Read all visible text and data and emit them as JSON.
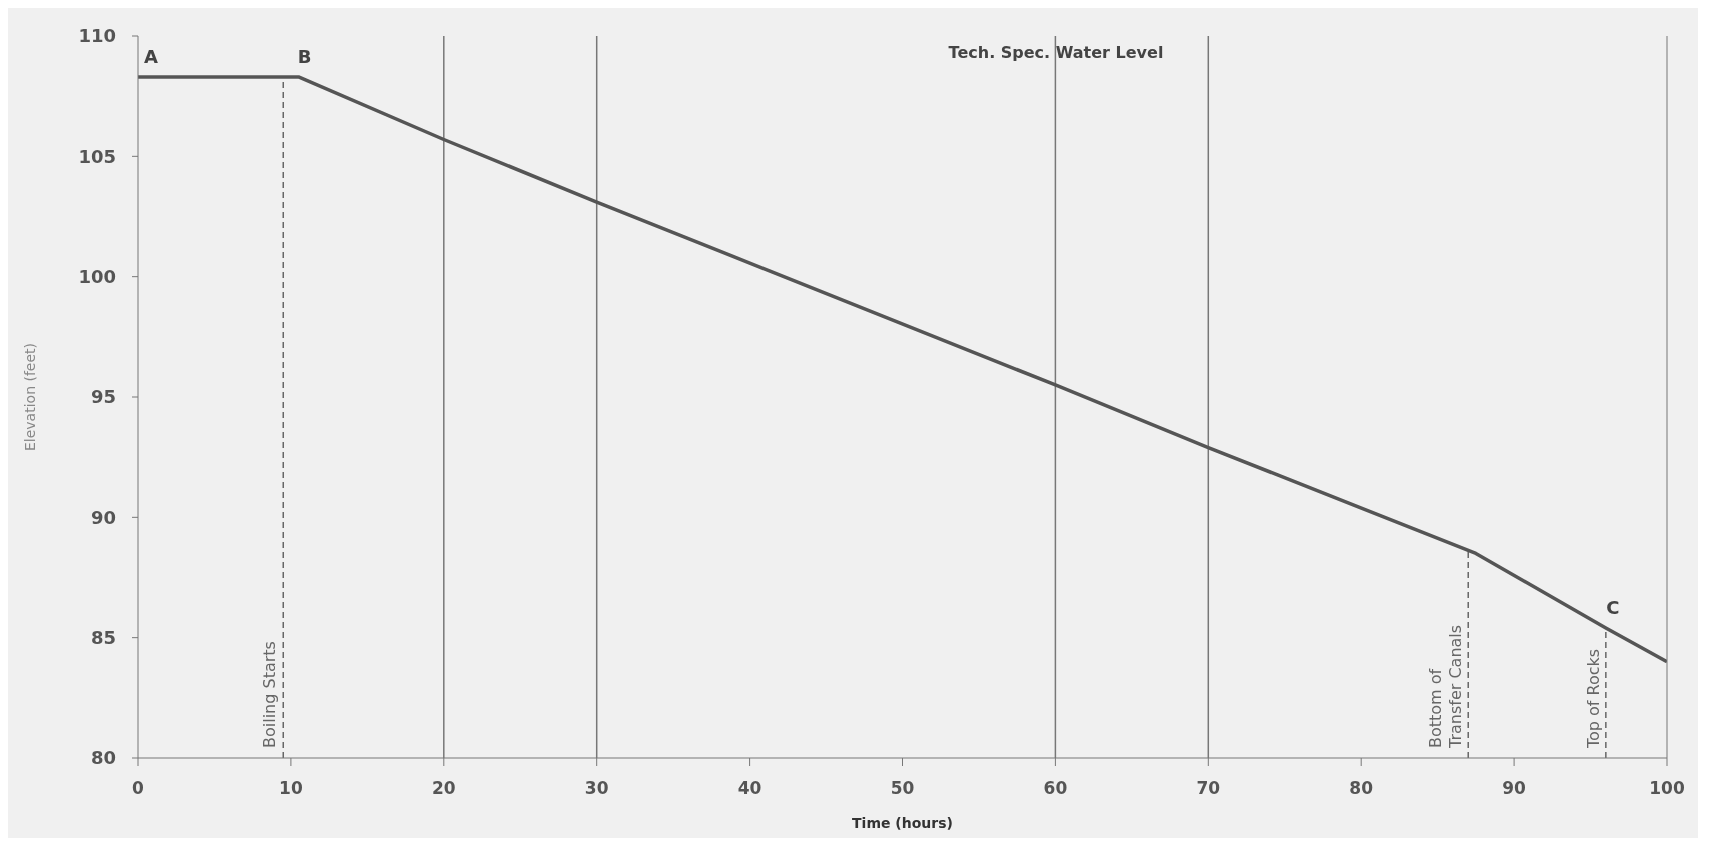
{
  "chart_data": {
    "type": "line",
    "xlabel": "Time (hours)",
    "ylabel": "Elevation (feet)",
    "x": [
      0,
      10.5,
      20,
      30,
      60,
      70,
      87.5,
      96,
      100
    ],
    "series": [
      {
        "color": "#555555",
        "values": [
          108.3,
          108.3,
          105.7,
          103.1,
          95.5,
          92.9,
          88.5,
          85.4,
          84.0
        ]
      }
    ],
    "xlim": [
      0,
      100
    ],
    "xticks": [
      0,
      10,
      20,
      30,
      40,
      50,
      60,
      70,
      80,
      90,
      100
    ],
    "ylim": [
      80,
      110
    ],
    "yticks": [
      80,
      85,
      90,
      95,
      100,
      105,
      110
    ],
    "grid": false,
    "legend": false,
    "marker": "none",
    "line_style": "solid",
    "ref_lines": [
      {
        "axis": "x",
        "value": 20,
        "color": "#777777",
        "line_style": "solid"
      },
      {
        "axis": "x",
        "value": 30,
        "color": "#777777",
        "line_style": "solid"
      },
      {
        "axis": "x",
        "value": 60,
        "color": "#777777",
        "line_style": "solid"
      },
      {
        "axis": "x",
        "value": 70,
        "color": "#777777",
        "line_style": "solid"
      },
      {
        "axis": "x",
        "value": 9.5,
        "label": "Boiling Starts",
        "color": "#666666",
        "line_style": "dashed"
      },
      {
        "axis": "x",
        "value": 87,
        "label": "Bottom of Transfer Canals",
        "color": "#666666",
        "line_style": "dashed"
      },
      {
        "axis": "x",
        "value": 96,
        "label": "Top of Rocks",
        "color": "#666666",
        "line_style": "dashed"
      }
    ],
    "annotations": [
      "Tech. Spec. Water Level",
      {
        "text": "A",
        "x": 0,
        "y": 108.3
      },
      {
        "text": "B",
        "x": 10.5,
        "y": 108.3
      },
      {
        "text": "C",
        "x": 96,
        "y": 85.4
      }
    ]
  }
}
